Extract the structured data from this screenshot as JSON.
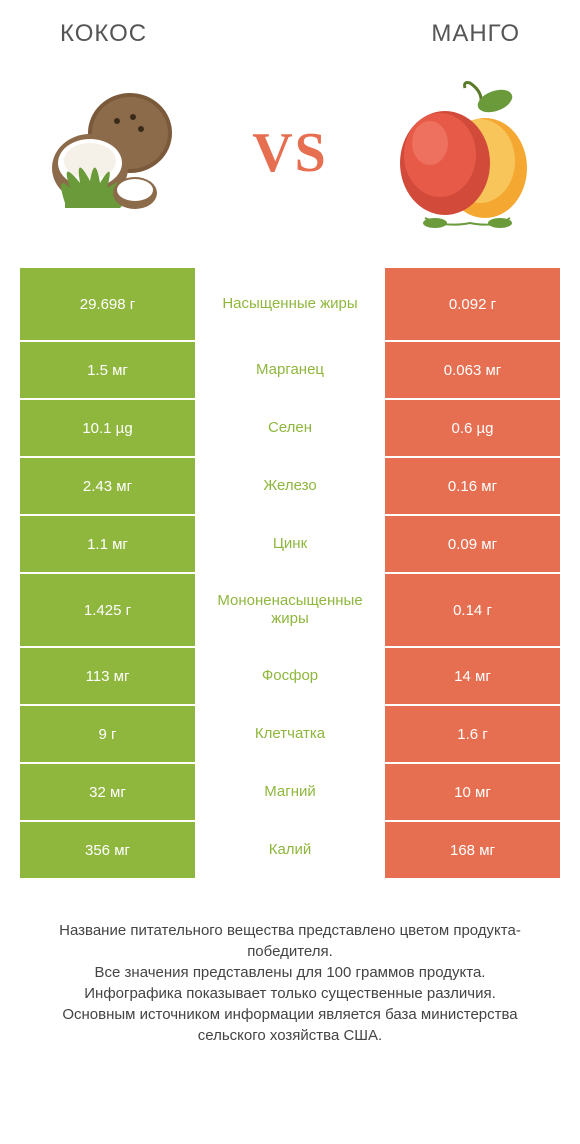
{
  "colors": {
    "green": "#8fb73e",
    "orange": "#e76f51",
    "bg": "#ffffff",
    "text": "#444444"
  },
  "header": {
    "left": "Кокос",
    "right": "Mанго",
    "vs": "VS"
  },
  "rows": [
    {
      "left": "29.698 г",
      "label": "Насыщенные жиры",
      "right": "0.092 г",
      "winner": "left",
      "tall": true
    },
    {
      "left": "1.5 мг",
      "label": "Марганец",
      "right": "0.063 мг",
      "winner": "left",
      "tall": false
    },
    {
      "left": "10.1 µg",
      "label": "Селен",
      "right": "0.6 µg",
      "winner": "left",
      "tall": false
    },
    {
      "left": "2.43 мг",
      "label": "Железо",
      "right": "0.16 мг",
      "winner": "left",
      "tall": false
    },
    {
      "left": "1.1 мг",
      "label": "Цинк",
      "right": "0.09 мг",
      "winner": "left",
      "tall": false
    },
    {
      "left": "1.425 г",
      "label": "Мононенасыщенные жиры",
      "right": "0.14 г",
      "winner": "left",
      "tall": true
    },
    {
      "left": "113 мг",
      "label": "Фосфор",
      "right": "14 мг",
      "winner": "left",
      "tall": false
    },
    {
      "left": "9 г",
      "label": "Клетчатка",
      "right": "1.6 г",
      "winner": "left",
      "tall": false
    },
    {
      "left": "32 мг",
      "label": "Магний",
      "right": "10 мг",
      "winner": "left",
      "tall": false
    },
    {
      "left": "356 мг",
      "label": "Калий",
      "right": "168 мг",
      "winner": "left",
      "tall": false
    }
  ],
  "footer": {
    "line1": "Название питательного вещества представлено цветом продукта-победителя.",
    "line2": "Все значения представлены для 100 граммов продукта.",
    "line3": "Инфографика показывает только существенные различия.",
    "line4": "Основным источником информации является база министерства сельского хозяйства США."
  }
}
